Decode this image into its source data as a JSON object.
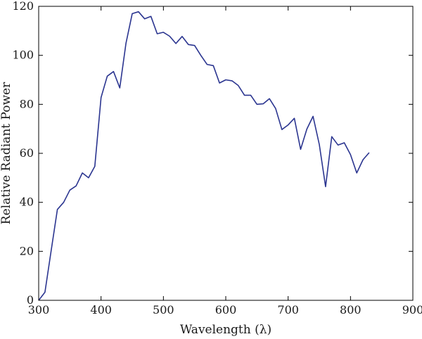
{
  "chart_data": {
    "type": "line",
    "title": "",
    "xlabel": "Wavelength (λ)",
    "ylabel": "Relative Radiant Power",
    "xlim": [
      300,
      900
    ],
    "ylim": [
      0,
      120
    ],
    "xticks": [
      300,
      400,
      500,
      600,
      700,
      800,
      900
    ],
    "yticks": [
      0,
      20,
      40,
      60,
      80,
      100,
      120
    ],
    "grid": false,
    "legend": "none",
    "series": [
      {
        "color": "#2b3590",
        "x": [
          300,
          310,
          320,
          330,
          340,
          350,
          360,
          370,
          380,
          390,
          400,
          410,
          420,
          430,
          440,
          450,
          460,
          470,
          480,
          490,
          500,
          510,
          520,
          530,
          540,
          550,
          560,
          570,
          580,
          590,
          600,
          610,
          620,
          630,
          640,
          650,
          660,
          670,
          680,
          690,
          700,
          710,
          720,
          730,
          740,
          750,
          760,
          770,
          780,
          790,
          800,
          810,
          820,
          830
        ],
        "y": [
          0.0,
          3.3,
          20.2,
          37.1,
          40.0,
          45.0,
          46.7,
          52.0,
          50.0,
          54.7,
          82.8,
          91.5,
          93.4,
          86.7,
          104.9,
          117.0,
          117.8,
          114.9,
          115.9,
          108.8,
          109.4,
          107.8,
          104.8,
          107.7,
          104.4,
          104.0,
          100.0,
          96.3,
          95.8,
          88.7,
          90.0,
          89.6,
          87.7,
          83.7,
          83.7,
          80.0,
          80.2,
          82.3,
          78.3,
          69.7,
          71.6,
          74.3,
          61.6,
          69.9,
          75.1,
          63.6,
          46.4,
          66.8,
          63.4,
          64.3,
          59.5,
          52.0,
          57.4,
          60.3
        ]
      }
    ]
  }
}
